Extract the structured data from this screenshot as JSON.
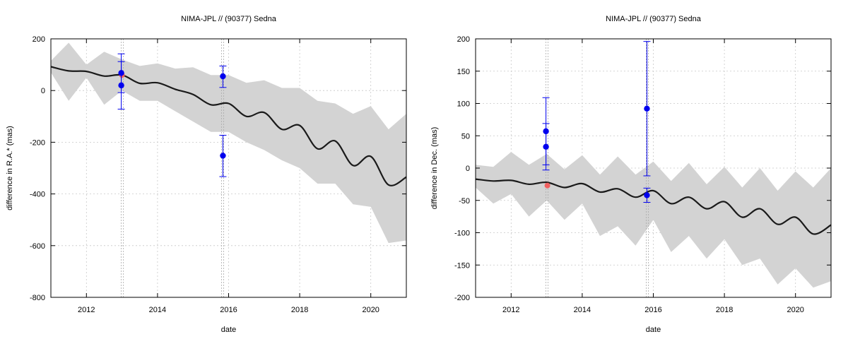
{
  "chart_data": [
    {
      "type": "line",
      "title": "NIMA-JPL // (90377) Sedna",
      "xlabel": "date",
      "ylabel": "difference in R.A.* (mas)",
      "xlim": [
        2011.0,
        2021.0
      ],
      "ylim": [
        -800,
        200
      ],
      "xticks": [
        "2012",
        "2014",
        "2016",
        "2018",
        "2020"
      ],
      "yticks": [
        "-800",
        "-600",
        "-400",
        "-200",
        "0",
        "200"
      ],
      "grid": true,
      "colors": {
        "band": "#d3d3d3",
        "line": "#1a1a1a",
        "obs": "#0000ee",
        "pred": "#f06060",
        "vline": "#aaaaaa"
      },
      "line": {
        "x": [
          2011.0,
          2011.5,
          2012.0,
          2012.5,
          2013.0,
          2013.5,
          2014.0,
          2014.5,
          2015.0,
          2015.5,
          2016.0,
          2016.5,
          2017.0,
          2017.5,
          2018.0,
          2018.5,
          2019.0,
          2019.5,
          2020.0,
          2020.5,
          2021.0
        ],
        "y": [
          92,
          76,
          74,
          56,
          60,
          28,
          30,
          5,
          -15,
          -55,
          -50,
          -100,
          -85,
          -150,
          -135,
          -225,
          -195,
          -290,
          -255,
          -365,
          -335
        ]
      },
      "band": {
        "x": [
          2011.0,
          2011.5,
          2012.0,
          2012.5,
          2013.0,
          2013.5,
          2014.0,
          2014.5,
          2015.0,
          2015.5,
          2016.0,
          2016.5,
          2017.0,
          2017.5,
          2018.0,
          2018.5,
          2019.0,
          2019.5,
          2020.0,
          2020.5,
          2021.0
        ],
        "upper": [
          115,
          185,
          100,
          150,
          120,
          95,
          105,
          85,
          90,
          60,
          60,
          30,
          40,
          10,
          10,
          -40,
          -50,
          -90,
          -60,
          -150,
          -90
        ],
        "lower": [
          70,
          -40,
          50,
          -55,
          0,
          -40,
          -40,
          -80,
          -120,
          -160,
          -160,
          -200,
          -230,
          -270,
          -300,
          -360,
          -360,
          -440,
          -450,
          -590,
          -580
        ]
      },
      "vlines": [
        2012.98,
        2013.04,
        2015.8,
        2015.86
      ],
      "observations": [
        {
          "x": 2012.98,
          "y": 68,
          "err_low": -8,
          "err_high": 142
        },
        {
          "x": 2012.98,
          "y": 20,
          "err_low": -72,
          "err_high": 112
        },
        {
          "x": 2015.84,
          "y": 55,
          "err_low": 12,
          "err_high": 95
        },
        {
          "x": 2015.84,
          "y": -252,
          "err_low": -333,
          "err_high": -173
        }
      ],
      "predictions": [
        {
          "x": 2013.0,
          "y": 60
        }
      ]
    },
    {
      "type": "line",
      "title": "NIMA-JPL // (90377) Sedna",
      "xlabel": "date",
      "ylabel": "difference in Dec. (mas)",
      "xlim": [
        2011.0,
        2021.0
      ],
      "ylim": [
        -200,
        200
      ],
      "xticks": [
        "2012",
        "2014",
        "2016",
        "2018",
        "2020"
      ],
      "yticks": [
        "-200",
        "-150",
        "-100",
        "-50",
        "0",
        "50",
        "100",
        "150",
        "200"
      ],
      "grid": true,
      "colors": {
        "band": "#d3d3d3",
        "line": "#1a1a1a",
        "obs": "#0000ee",
        "pred": "#f06060",
        "vline": "#aaaaaa"
      },
      "line": {
        "x": [
          2011.0,
          2011.5,
          2012.0,
          2012.5,
          2013.0,
          2013.5,
          2014.0,
          2014.5,
          2015.0,
          2015.5,
          2016.0,
          2016.5,
          2017.0,
          2017.5,
          2018.0,
          2018.5,
          2019.0,
          2019.5,
          2020.0,
          2020.5,
          2021.0
        ],
        "y": [
          -17,
          -20,
          -19,
          -25,
          -22,
          -30,
          -24,
          -37,
          -32,
          -45,
          -35,
          -55,
          -45,
          -63,
          -52,
          -76,
          -63,
          -87,
          -76,
          -102,
          -88
        ]
      },
      "band": {
        "x": [
          2011.0,
          2011.5,
          2012.0,
          2012.5,
          2013.0,
          2013.5,
          2014.0,
          2014.5,
          2015.0,
          2015.5,
          2016.0,
          2016.5,
          2017.0,
          2017.5,
          2018.0,
          2018.5,
          2019.0,
          2019.5,
          2020.0,
          2020.5,
          2021.0
        ],
        "upper": [
          5,
          2,
          25,
          5,
          22,
          -2,
          20,
          -10,
          18,
          -10,
          10,
          -20,
          8,
          -25,
          2,
          -30,
          0,
          -35,
          -5,
          -30,
          0
        ],
        "lower": [
          -30,
          -55,
          -40,
          -75,
          -50,
          -80,
          -55,
          -105,
          -90,
          -120,
          -80,
          -130,
          -105,
          -140,
          -110,
          -150,
          -140,
          -180,
          -155,
          -185,
          -175
        ]
      },
      "vlines": [
        2012.98,
        2013.04,
        2015.8,
        2015.86
      ],
      "observations": [
        {
          "x": 2012.98,
          "y": 57,
          "err_low": 5,
          "err_high": 109
        },
        {
          "x": 2012.98,
          "y": 33,
          "err_low": -3,
          "err_high": 69
        },
        {
          "x": 2015.82,
          "y": 92,
          "err_low": -12,
          "err_high": 196
        },
        {
          "x": 2015.82,
          "y": -42,
          "err_low": -53,
          "err_high": -31
        }
      ],
      "predictions": [
        {
          "x": 2013.02,
          "y": -27
        }
      ]
    }
  ]
}
